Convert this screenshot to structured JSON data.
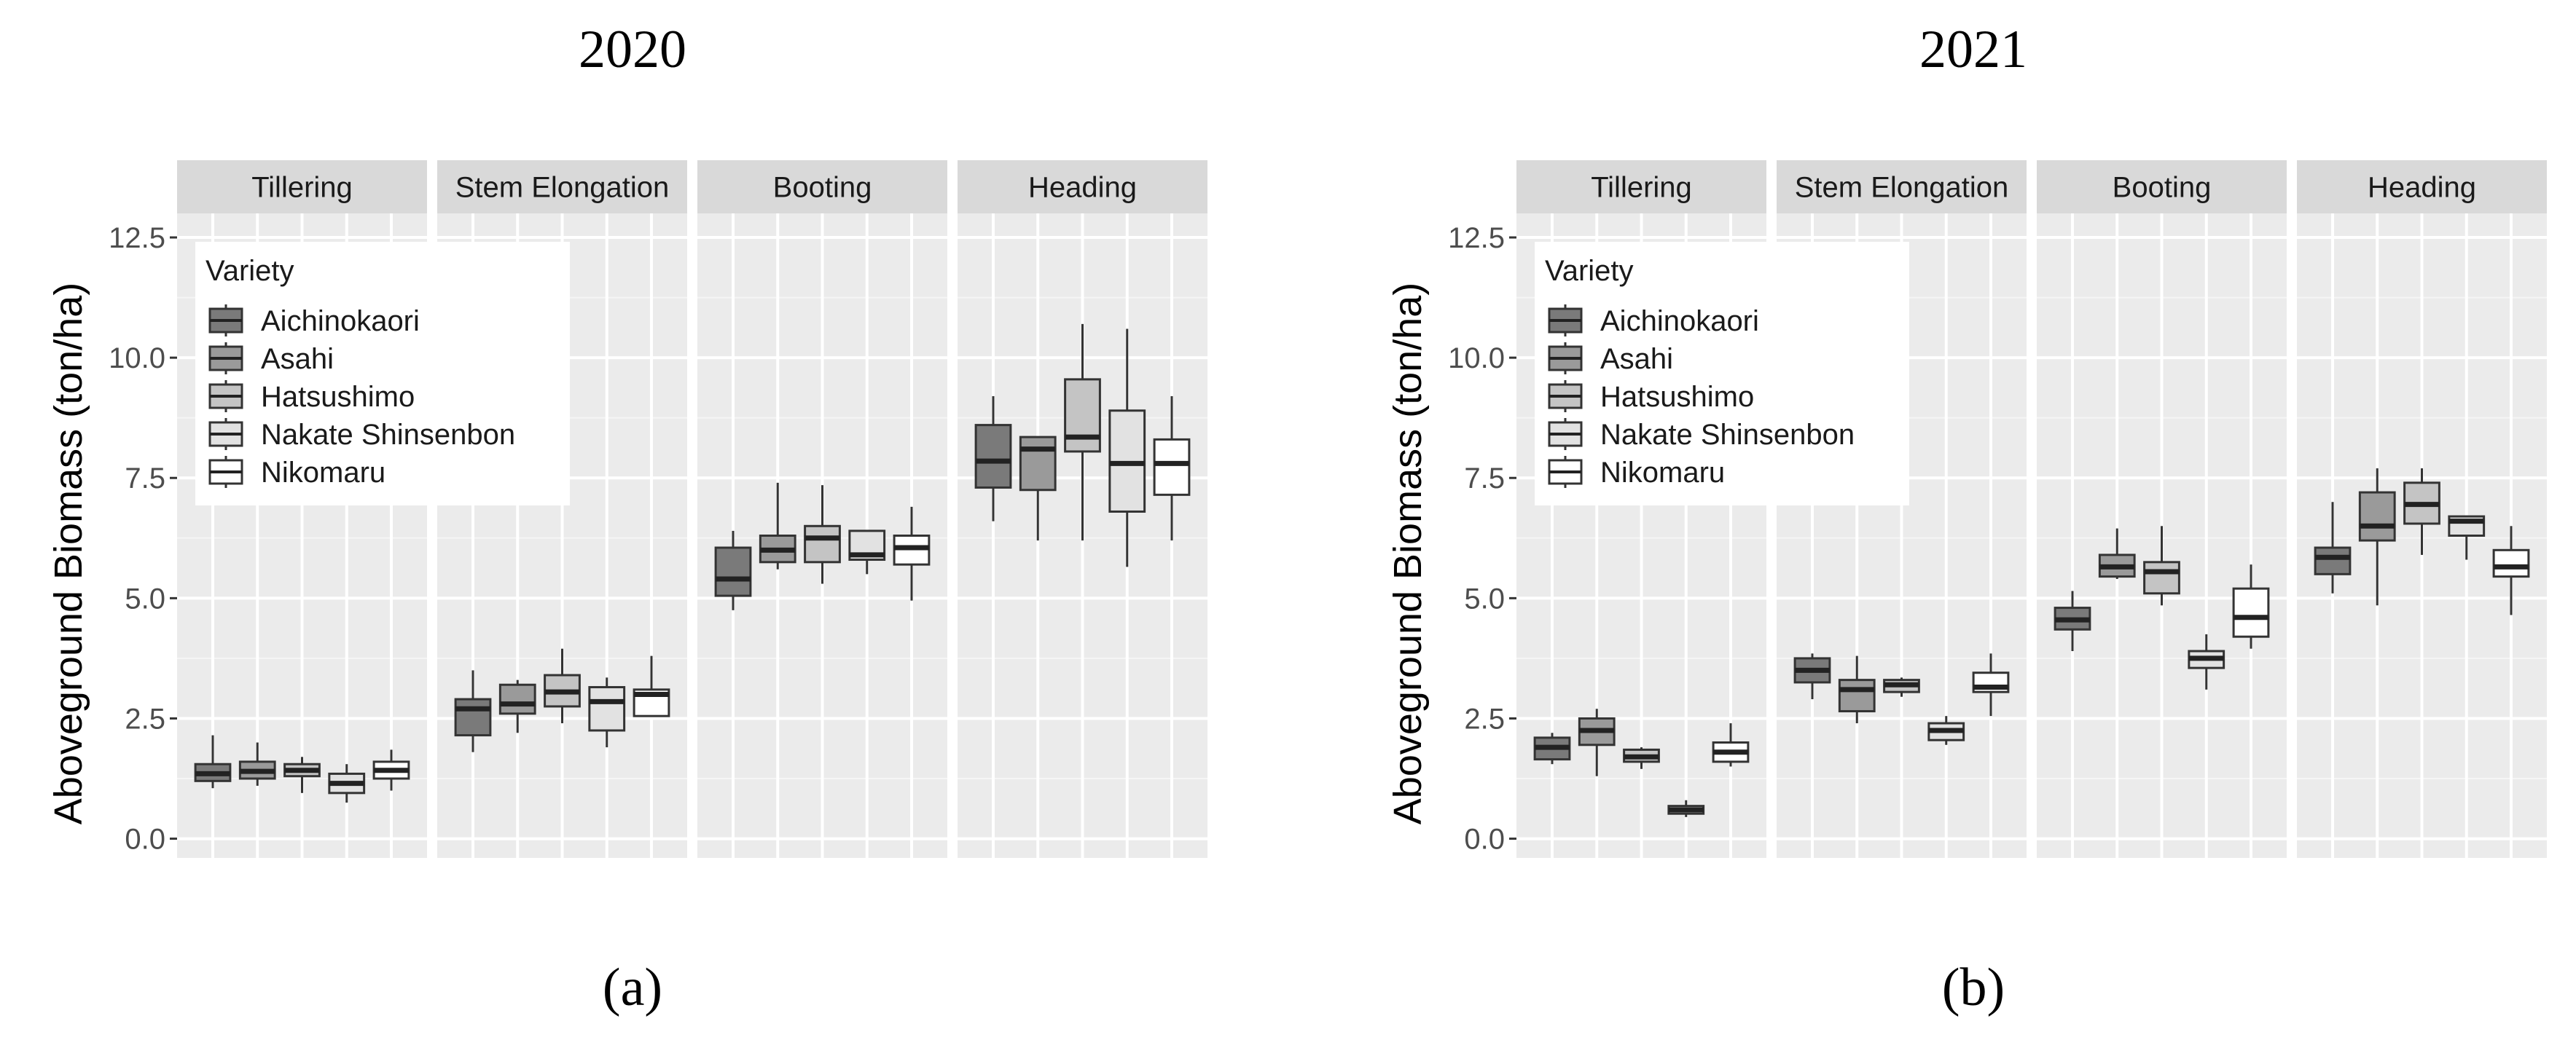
{
  "chart_data": [
    {
      "id": "a",
      "type": "boxplot",
      "title": "2020",
      "caption": "(a)",
      "ylabel": "Aboveground Biomass (ton/ha)",
      "ylim": [
        -0.4,
        13
      ],
      "yticks": [
        0.0,
        2.5,
        5.0,
        7.5,
        10.0,
        12.5
      ],
      "ytick_labels": [
        "0.0",
        "2.5",
        "5.0",
        "7.5",
        "10.0",
        "12.5"
      ],
      "grid": true,
      "legend": {
        "title": "Variety",
        "placement": "top-left",
        "entries": [
          {
            "label": "Aichinokaori",
            "color": "#7a7a7a"
          },
          {
            "label": "Asahi",
            "color": "#9a9a9a"
          },
          {
            "label": "Hatsushimo",
            "color": "#c4c4c4"
          },
          {
            "label": "Nakate Shinsenbon",
            "color": "#e2e2e2"
          },
          {
            "label": "Nikomaru",
            "color": "#ffffff"
          }
        ]
      },
      "facets": [
        {
          "label": "Tillering",
          "boxes": [
            {
              "variety": "Aichinokaori",
              "min": 1.05,
              "q1": 1.2,
              "median": 1.35,
              "q3": 1.55,
              "max": 2.15
            },
            {
              "variety": "Asahi",
              "min": 1.1,
              "q1": 1.25,
              "median": 1.4,
              "q3": 1.6,
              "max": 2.0
            },
            {
              "variety": "Hatsushimo",
              "min": 0.95,
              "q1": 1.3,
              "median": 1.42,
              "q3": 1.55,
              "max": 1.7
            },
            {
              "variety": "Nakate Shinsenbon",
              "min": 0.75,
              "q1": 0.95,
              "median": 1.15,
              "q3": 1.35,
              "max": 1.55
            },
            {
              "variety": "Nikomaru",
              "min": 1.0,
              "q1": 1.25,
              "median": 1.42,
              "q3": 1.6,
              "max": 1.85
            }
          ]
        },
        {
          "label": "Stem Elongation",
          "boxes": [
            {
              "variety": "Aichinokaori",
              "min": 1.8,
              "q1": 2.15,
              "median": 2.7,
              "q3": 2.9,
              "max": 3.5
            },
            {
              "variety": "Asahi",
              "min": 2.2,
              "q1": 2.6,
              "median": 2.8,
              "q3": 3.2,
              "max": 3.3
            },
            {
              "variety": "Hatsushimo",
              "min": 2.4,
              "q1": 2.75,
              "median": 3.05,
              "q3": 3.4,
              "max": 3.95
            },
            {
              "variety": "Nakate Shinsenbon",
              "min": 1.9,
              "q1": 2.25,
              "median": 2.85,
              "q3": 3.15,
              "max": 3.35
            },
            {
              "variety": "Nikomaru",
              "min": 2.55,
              "q1": 2.55,
              "median": 3.0,
              "q3": 3.1,
              "max": 3.8
            }
          ]
        },
        {
          "label": "Booting",
          "boxes": [
            {
              "variety": "Aichinokaori",
              "min": 4.75,
              "q1": 5.05,
              "median": 5.4,
              "q3": 6.05,
              "max": 6.4
            },
            {
              "variety": "Asahi",
              "min": 5.6,
              "q1": 5.75,
              "median": 6.0,
              "q3": 6.3,
              "max": 7.4
            },
            {
              "variety": "Hatsushimo",
              "min": 5.3,
              "q1": 5.75,
              "median": 6.25,
              "q3": 6.5,
              "max": 7.35
            },
            {
              "variety": "Nakate Shinsenbon",
              "min": 5.5,
              "q1": 5.8,
              "median": 5.9,
              "q3": 6.4,
              "max": 6.4
            },
            {
              "variety": "Nikomaru",
              "min": 4.95,
              "q1": 5.7,
              "median": 6.05,
              "q3": 6.3,
              "max": 6.9
            }
          ]
        },
        {
          "label": "Heading",
          "boxes": [
            {
              "variety": "Aichinokaori",
              "min": 6.6,
              "q1": 7.3,
              "median": 7.85,
              "q3": 8.6,
              "max": 9.2
            },
            {
              "variety": "Asahi",
              "min": 6.2,
              "q1": 7.25,
              "median": 8.1,
              "q3": 8.35,
              "max": 8.35
            },
            {
              "variety": "Hatsushimo",
              "min": 6.2,
              "q1": 8.05,
              "median": 8.35,
              "q3": 9.55,
              "max": 10.7
            },
            {
              "variety": "Nakate Shinsenbon",
              "min": 5.65,
              "q1": 6.8,
              "median": 7.8,
              "q3": 8.9,
              "max": 10.6
            },
            {
              "variety": "Nikomaru",
              "min": 6.2,
              "q1": 7.15,
              "median": 7.8,
              "q3": 8.3,
              "max": 9.2
            }
          ]
        }
      ]
    },
    {
      "id": "b",
      "type": "boxplot",
      "title": "2021",
      "caption": "(b)",
      "ylabel": "Aboveground Biomass (ton/ha)",
      "ylim": [
        -0.4,
        13
      ],
      "yticks": [
        0.0,
        2.5,
        5.0,
        7.5,
        10.0,
        12.5
      ],
      "ytick_labels": [
        "0.0",
        "2.5",
        "5.0",
        "7.5",
        "10.0",
        "12.5"
      ],
      "grid": true,
      "legend": {
        "title": "Variety",
        "placement": "top-left",
        "entries": [
          {
            "label": "Aichinokaori",
            "color": "#7a7a7a"
          },
          {
            "label": "Asahi",
            "color": "#9a9a9a"
          },
          {
            "label": "Hatsushimo",
            "color": "#c4c4c4"
          },
          {
            "label": "Nakate Shinsenbon",
            "color": "#e2e2e2"
          },
          {
            "label": "Nikomaru",
            "color": "#ffffff"
          }
        ]
      },
      "facets": [
        {
          "label": "Tillering",
          "boxes": [
            {
              "variety": "Aichinokaori",
              "min": 1.55,
              "q1": 1.65,
              "median": 1.9,
              "q3": 2.1,
              "max": 2.2
            },
            {
              "variety": "Asahi",
              "min": 1.3,
              "q1": 1.95,
              "median": 2.25,
              "q3": 2.5,
              "max": 2.7
            },
            {
              "variety": "Hatsushimo",
              "min": 1.45,
              "q1": 1.6,
              "median": 1.7,
              "q3": 1.85,
              "max": 1.9
            },
            {
              "variety": "Nakate Shinsenbon",
              "min": 0.45,
              "q1": 0.52,
              "median": 0.6,
              "q3": 0.68,
              "max": 0.8
            },
            {
              "variety": "Nikomaru",
              "min": 1.5,
              "q1": 1.6,
              "median": 1.8,
              "q3": 2.0,
              "max": 2.4
            }
          ]
        },
        {
          "label": "Stem Elongation",
          "boxes": [
            {
              "variety": "Aichinokaori",
              "min": 2.9,
              "q1": 3.25,
              "median": 3.5,
              "q3": 3.75,
              "max": 3.85
            },
            {
              "variety": "Asahi",
              "min": 2.4,
              "q1": 2.65,
              "median": 3.1,
              "q3": 3.3,
              "max": 3.8
            },
            {
              "variety": "Hatsushimo",
              "min": 2.95,
              "q1": 3.05,
              "median": 3.2,
              "q3": 3.3,
              "max": 3.35
            },
            {
              "variety": "Nakate Shinsenbon",
              "min": 1.95,
              "q1": 2.05,
              "median": 2.25,
              "q3": 2.4,
              "max": 2.55
            },
            {
              "variety": "Nikomaru",
              "min": 2.55,
              "q1": 3.05,
              "median": 3.15,
              "q3": 3.45,
              "max": 3.85
            }
          ]
        },
        {
          "label": "Booting",
          "boxes": [
            {
              "variety": "Aichinokaori",
              "min": 3.9,
              "q1": 4.35,
              "median": 4.55,
              "q3": 4.8,
              "max": 5.15
            },
            {
              "variety": "Asahi",
              "min": 5.4,
              "q1": 5.45,
              "median": 5.65,
              "q3": 5.9,
              "max": 6.45
            },
            {
              "variety": "Hatsushimo",
              "min": 4.85,
              "q1": 5.1,
              "median": 5.55,
              "q3": 5.75,
              "max": 6.5
            },
            {
              "variety": "Nakate Shinsenbon",
              "min": 3.1,
              "q1": 3.55,
              "median": 3.75,
              "q3": 3.9,
              "max": 4.25
            },
            {
              "variety": "Nikomaru",
              "min": 3.95,
              "q1": 4.2,
              "median": 4.6,
              "q3": 5.2,
              "max": 5.7
            }
          ]
        },
        {
          "label": "Heading",
          "boxes": [
            {
              "variety": "Aichinokaori",
              "min": 5.1,
              "q1": 5.5,
              "median": 5.85,
              "q3": 6.05,
              "max": 7.0
            },
            {
              "variety": "Asahi",
              "min": 4.85,
              "q1": 6.2,
              "median": 6.5,
              "q3": 7.2,
              "max": 7.7
            },
            {
              "variety": "Hatsushimo",
              "min": 5.9,
              "q1": 6.55,
              "median": 6.95,
              "q3": 7.4,
              "max": 7.7
            },
            {
              "variety": "Nakate Shinsenbon",
              "min": 5.8,
              "q1": 6.3,
              "median": 6.6,
              "q3": 6.7,
              "max": 6.7
            },
            {
              "variety": "Nikomaru",
              "min": 4.65,
              "q1": 5.45,
              "median": 5.65,
              "q3": 6.0,
              "max": 6.5
            }
          ]
        }
      ]
    }
  ]
}
